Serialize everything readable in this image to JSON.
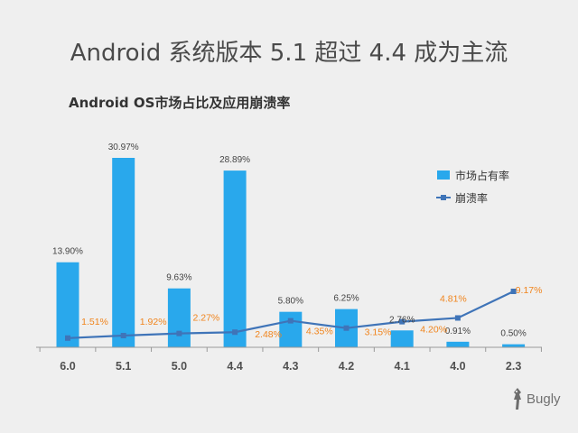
{
  "title": "Android 系统版本 5.1 超过 4.4 成为主流",
  "chart_data": {
    "type": "bar",
    "title": "Android OS市场占比及应用崩溃率",
    "categories": [
      "6.0",
      "5.1",
      "5.0",
      "4.4",
      "4.3",
      "4.2",
      "4.1",
      "4.0",
      "2.3"
    ],
    "series": [
      {
        "name": "市场占有率",
        "type": "bar",
        "color": "#29a8ec",
        "values": [
          13.9,
          30.97,
          9.63,
          28.89,
          5.8,
          6.25,
          2.76,
          0.91,
          0.5
        ],
        "labels": [
          "13.90%",
          "30.97%",
          "9.63%",
          "28.89%",
          "5.80%",
          "6.25%",
          "2.76%",
          "0.91%",
          "0.50%"
        ]
      },
      {
        "name": "崩溃率",
        "type": "line",
        "color": "#3f74b8",
        "label_color": "#f0841c",
        "values": [
          1.51,
          1.92,
          2.27,
          2.48,
          4.35,
          3.15,
          4.2,
          4.81,
          9.17
        ],
        "labels": [
          "1.51%",
          "1.92%",
          "2.27%",
          "2.48%",
          "4.35%",
          "3.15%",
          "4.20%",
          "4.81%",
          "9.17%"
        ]
      }
    ],
    "legend": "right",
    "grid": false
  },
  "logo": {
    "text": "Bugly",
    "icon": "bugly-logo-icon"
  }
}
